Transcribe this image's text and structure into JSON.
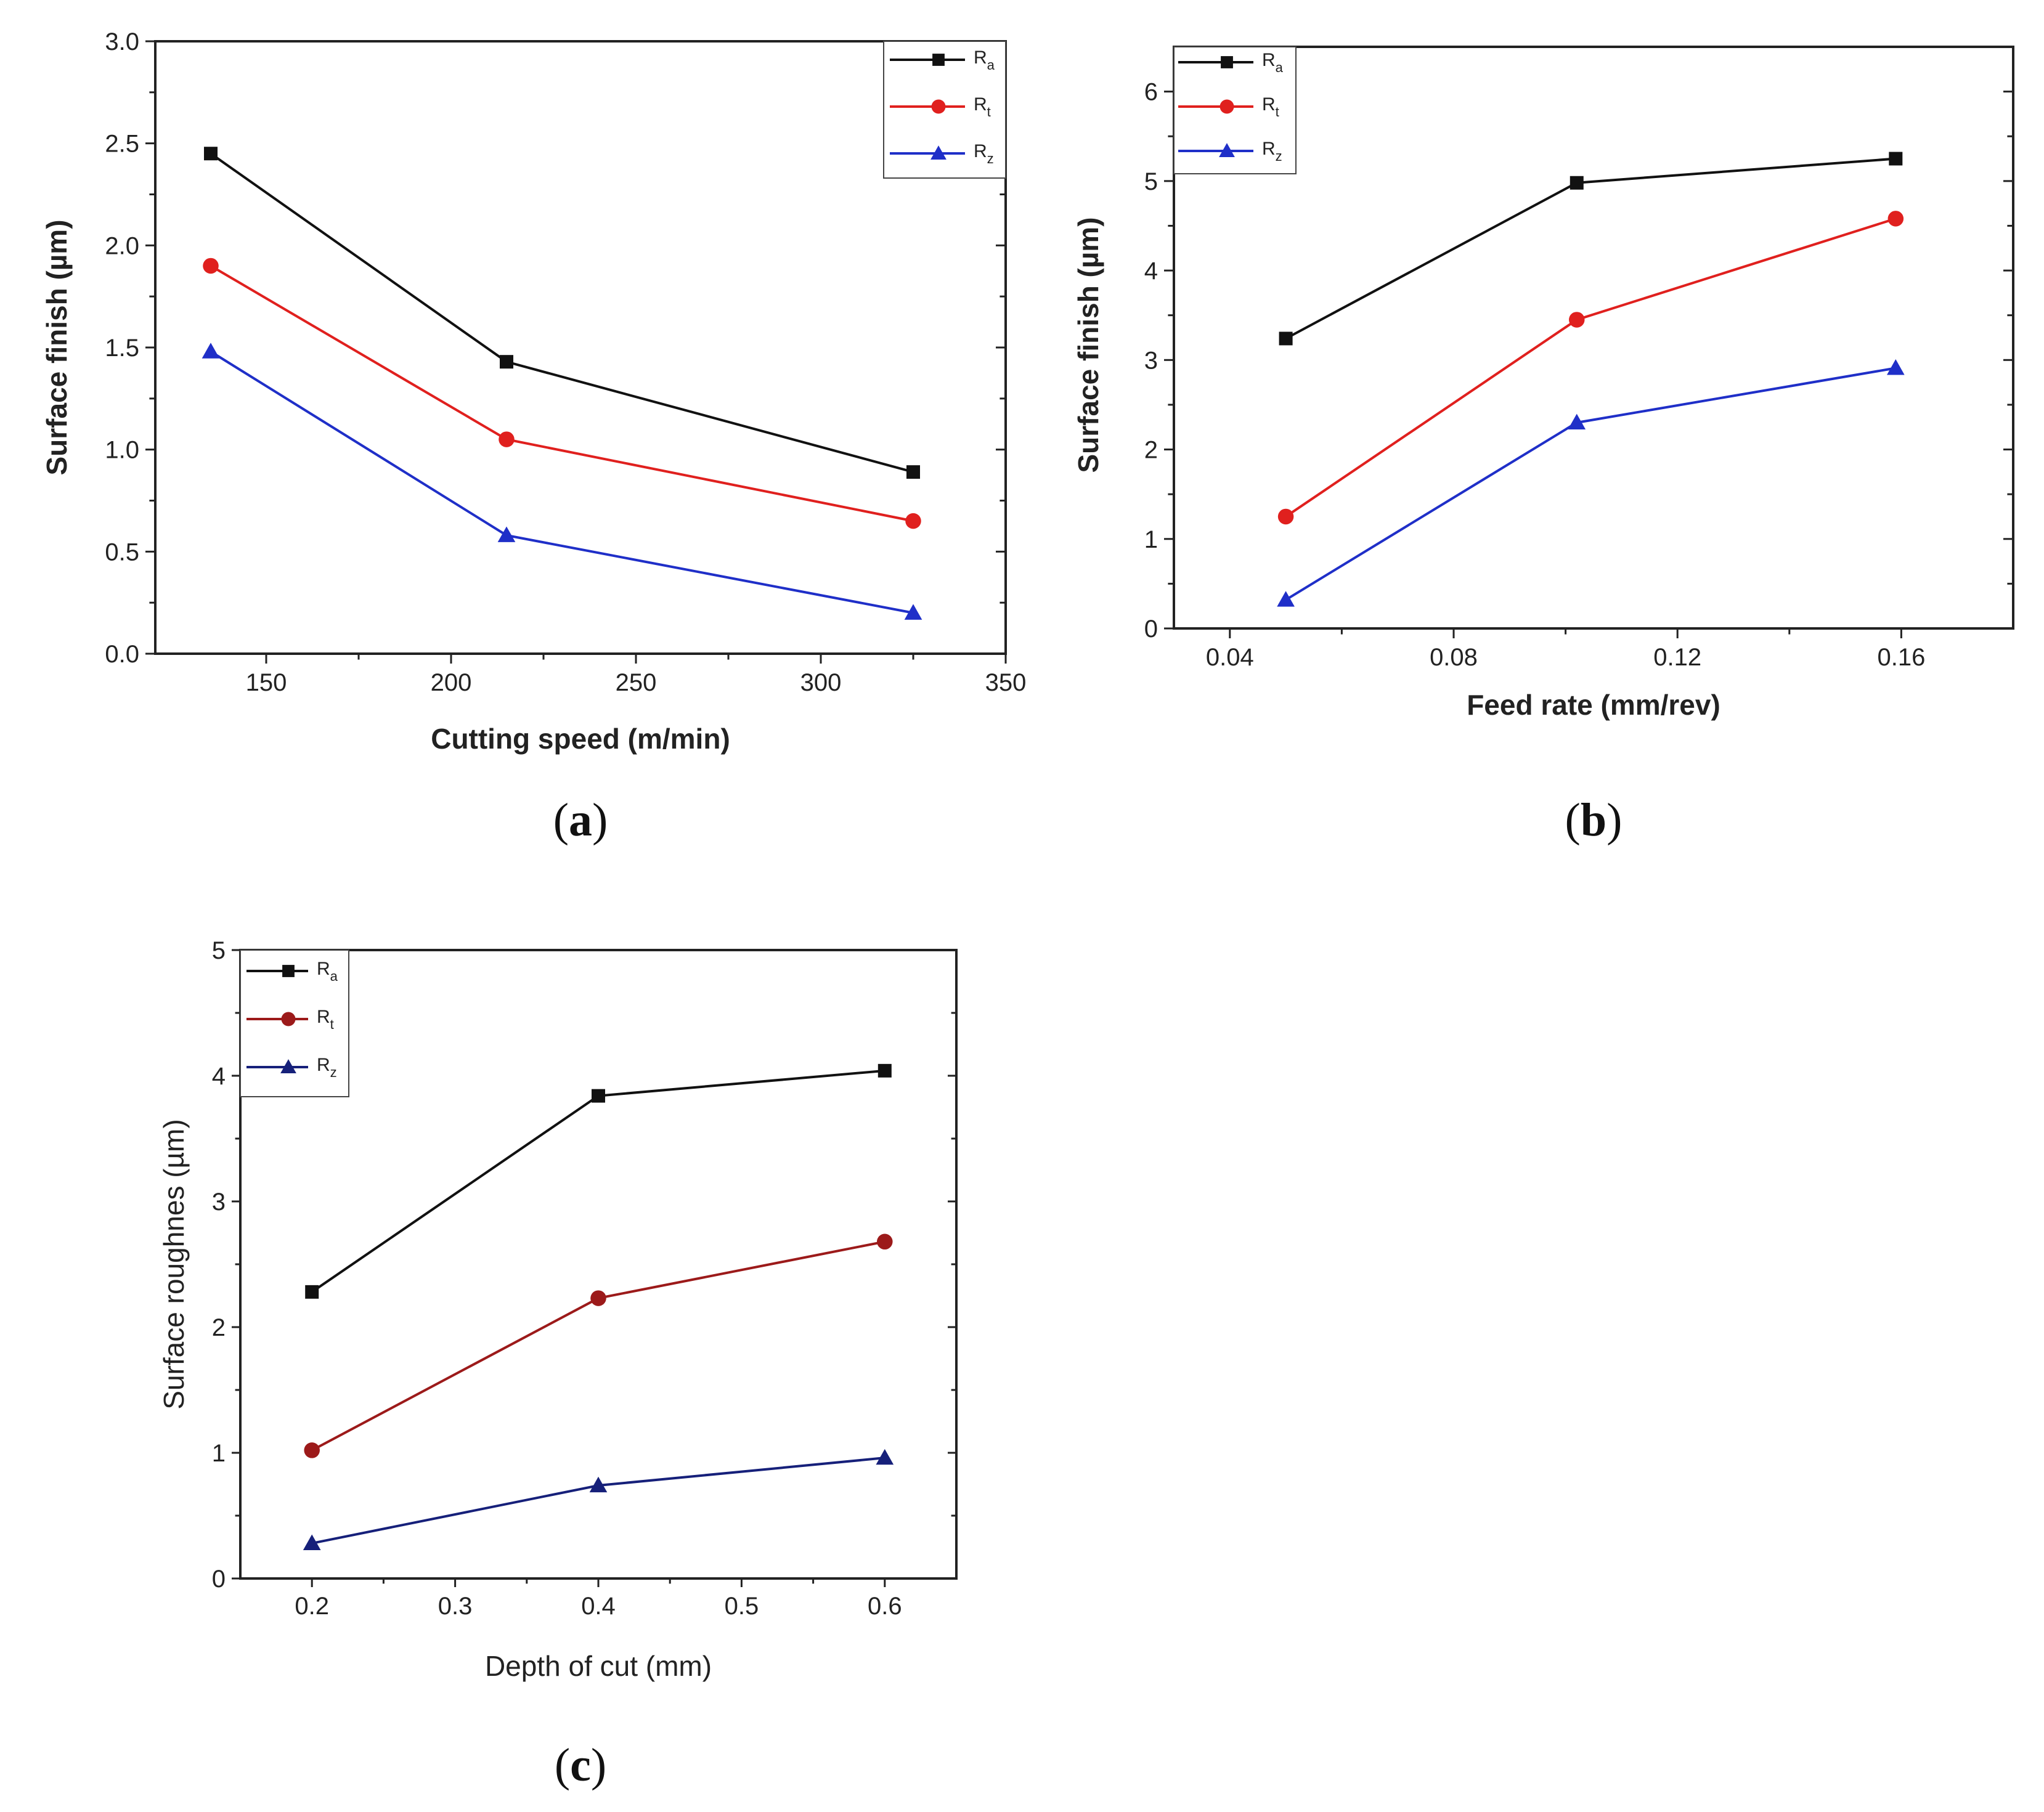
{
  "figure": {
    "panels": [
      "a",
      "b",
      "c"
    ]
  },
  "series_colors": {
    "Ra": "#111111",
    "Rt": "#e0201e",
    "Rz": "#1f2fc8",
    "Rt_c": "#9c1a1a",
    "Rz_c": "#16207a"
  },
  "chart_data": [
    {
      "id": "a",
      "type": "line",
      "panel_label": "a",
      "title": "",
      "xlabel": "Cutting speed (m/min)",
      "ylabel": "Surface finish (µm)",
      "xlim": [
        120,
        350
      ],
      "ylim": [
        0,
        3.0
      ],
      "xticks": [
        150,
        200,
        250,
        300,
        350
      ],
      "xtick_labels": [
        "150",
        "200",
        "250",
        "300",
        "350"
      ],
      "yticks": [
        0,
        0.5,
        1.0,
        1.5,
        2.0,
        2.5,
        3.0
      ],
      "ytick_labels": [
        "0.0",
        "0.5",
        "1.0",
        "1.5",
        "2.0",
        "2.5",
        "3.0"
      ],
      "legend_position": "top-right",
      "x": [
        135,
        215,
        325
      ],
      "series": [
        {
          "name": "R",
          "sub": "a",
          "color_key": "Ra",
          "marker": "square",
          "values": [
            2.45,
            1.43,
            0.89
          ]
        },
        {
          "name": "R",
          "sub": "t",
          "color_key": "Rt",
          "marker": "circle",
          "values": [
            1.9,
            1.05,
            0.65
          ]
        },
        {
          "name": "R",
          "sub": "z",
          "color_key": "Rz",
          "marker": "triangle",
          "values": [
            1.48,
            0.58,
            0.2
          ]
        }
      ]
    },
    {
      "id": "b",
      "type": "line",
      "panel_label": "b",
      "title": "",
      "xlabel": "Feed rate (mm/rev)",
      "ylabel": "Surface finish (µm)",
      "xlim": [
        0.03,
        0.18
      ],
      "ylim": [
        0,
        6.5
      ],
      "xticks": [
        0.04,
        0.08,
        0.12,
        0.16
      ],
      "xtick_labels": [
        "0.04",
        "0.08",
        "0.12",
        "0.16"
      ],
      "yticks": [
        0,
        1,
        2,
        3,
        4,
        5,
        6
      ],
      "ytick_labels": [
        "0",
        "1",
        "2",
        "3",
        "4",
        "5",
        "6"
      ],
      "legend_position": "top-left",
      "x": [
        0.05,
        0.102,
        0.159
      ],
      "series": [
        {
          "name": "R",
          "sub": "a",
          "color_key": "Ra",
          "marker": "square",
          "values": [
            3.24,
            4.98,
            5.25
          ]
        },
        {
          "name": "R",
          "sub": "t",
          "color_key": "Rt",
          "marker": "circle",
          "values": [
            1.25,
            3.45,
            4.58
          ]
        },
        {
          "name": "R",
          "sub": "z",
          "color_key": "Rz",
          "marker": "triangle",
          "values": [
            0.32,
            2.3,
            2.91
          ]
        }
      ]
    },
    {
      "id": "c",
      "type": "line",
      "panel_label": "c",
      "title": "",
      "xlabel": "Depth of cut (mm)",
      "ylabel": "Surface roughnes (µm)",
      "xlim": [
        0.15,
        0.65
      ],
      "ylim": [
        0,
        5
      ],
      "xticks": [
        0.2,
        0.3,
        0.4,
        0.5,
        0.6
      ],
      "xtick_labels": [
        "0.2",
        "0.3",
        "0.4",
        "0.5",
        "0.6"
      ],
      "yticks": [
        0,
        1,
        2,
        3,
        4,
        5
      ],
      "ytick_labels": [
        "0",
        "1",
        "2",
        "3",
        "4",
        "5"
      ],
      "legend_position": "top-left",
      "x": [
        0.2,
        0.4,
        0.6
      ],
      "series": [
        {
          "name": "R",
          "sub": "a",
          "color_key": "Ra",
          "marker": "square",
          "values": [
            2.28,
            3.84,
            4.04
          ]
        },
        {
          "name": "R",
          "sub": "t",
          "color_key": "Rt_c",
          "marker": "circle",
          "values": [
            1.02,
            2.23,
            2.68
          ]
        },
        {
          "name": "R",
          "sub": "z",
          "color_key": "Rz_c",
          "marker": "triangle",
          "values": [
            0.28,
            0.74,
            0.96
          ]
        }
      ]
    }
  ]
}
